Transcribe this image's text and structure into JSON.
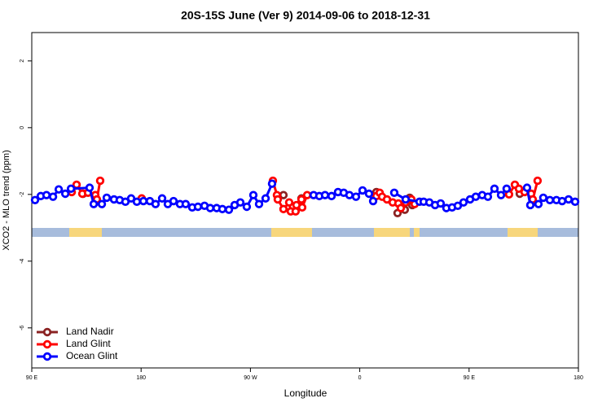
{
  "chart_data": {
    "type": "line",
    "title": "20S-15S June (Ver 9)   2014-09-06 to 2018-12-31",
    "x_label": "Longitude",
    "y_label": "XCO2 - MLO trend (ppm)",
    "xlim": [
      90,
      540
    ],
    "ylim": [
      -7.2,
      2.85
    ],
    "xticks": [
      {
        "value": 90,
        "label": "90 E"
      },
      180,
      {
        "value": 270,
        "label": "90 W"
      },
      {
        "value": 360,
        "label": "0"
      },
      {
        "value": 450,
        "label": "90 E"
      },
      {
        "value": 540,
        "label": "180"
      }
    ],
    "yticks": [
      2,
      0,
      -2,
      -4,
      -6
    ],
    "legend": "bottom-left",
    "series": [
      {
        "name": "Land Nadir",
        "color": "#8b2323",
        "x": [
          132.3,
          null,
          297.2,
          null,
          312.0,
          null,
          373.7,
          null,
          391.1,
          397.1,
          401.1,
          403.2,
          null,
          491.7
        ],
        "values": [
          -1.98,
          null,
          -2.02,
          null,
          -2.12,
          null,
          -1.93,
          null,
          -2.56,
          -2.46,
          -2.1,
          -2.32,
          null,
          -1.98
        ]
      },
      {
        "name": "Land Glint",
        "color": "#ff0000",
        "x": [
          122.9,
          126.9,
          131.6,
          136.3,
          142.3,
          143.6,
          146.3,
          null,
          180.5,
          null,
          288.5,
          291.8,
          292.5,
          297.2,
          301.9,
          303.2,
          307.2,
          307.9,
          312.0,
          312.6,
          316.7,
          null,
          373.7,
          376.4,
          378.4,
          382.4,
          387.1,
          391.8,
          393.8,
          397.8,
          402.5,
          405.2,
          null,
          482.9,
          487.7,
          491.0,
          495.7,
          501.1,
          502.4,
          506.4
        ],
        "values": [
          -1.93,
          -1.71,
          -1.98,
          -1.95,
          -2.02,
          -2.15,
          -1.59,
          null,
          -2.12,
          null,
          -1.59,
          -2.02,
          -2.15,
          -2.44,
          -2.24,
          -2.51,
          -2.51,
          -2.32,
          -2.15,
          -2.39,
          -2.02,
          null,
          -2.05,
          -1.95,
          -2.07,
          -2.15,
          -2.24,
          -2.27,
          -2.41,
          -2.24,
          -2.15,
          -2.29,
          null,
          -2.0,
          -1.71,
          -1.83,
          -1.93,
          -1.98,
          -2.15,
          -1.59
        ]
      },
      {
        "name": "Ocean Glint",
        "color": "#0000ff",
        "x": [
          92.7,
          97.4,
          102.1,
          107.5,
          112.2,
          117.6,
          122.3,
          137.6,
          141.0,
          147.7,
          151.7,
          157.7,
          162.4,
          167.1,
          171.8,
          176.5,
          181.9,
          187.2,
          191.9,
          197.3,
          202.0,
          206.7,
          212.0,
          216.7,
          222.1,
          226.8,
          232.2,
          236.9,
          242.2,
          246.9,
          252.3,
          257.0,
          261.7,
          267.0,
          272.4,
          277.1,
          282.5,
          287.8,
          null,
          322.0,
          326.7,
          331.4,
          336.8,
          342.1,
          346.8,
          351.5,
          356.9,
          362.3,
          367.6,
          371.0,
          null,
          388.4,
          397.8,
          409.2,
          412.6,
          417.3,
          422.0,
          426.6,
          431.3,
          436.0,
          440.7,
          445.4,
          450.8,
          455.5,
          460.8,
          465.5,
          470.9,
          476.3,
          480.9,
          null,
          497.7,
          500.4,
          507.1,
          511.1,
          516.5,
          521.9,
          526.6,
          531.9,
          537.3
        ],
        "values": [
          -2.17,
          -2.05,
          -2.02,
          -2.07,
          -1.85,
          -1.98,
          -1.83,
          -1.8,
          -2.29,
          -2.29,
          -2.1,
          -2.15,
          -2.17,
          -2.22,
          -2.12,
          -2.22,
          -2.2,
          -2.2,
          -2.29,
          -2.12,
          -2.29,
          -2.2,
          -2.29,
          -2.29,
          -2.39,
          -2.37,
          -2.34,
          -2.41,
          -2.41,
          -2.44,
          -2.46,
          -2.32,
          -2.24,
          -2.37,
          -2.02,
          -2.29,
          -2.12,
          -1.68,
          null,
          -2.02,
          -2.05,
          -2.02,
          -2.05,
          -1.93,
          -1.95,
          -2.02,
          -2.07,
          -1.88,
          -1.98,
          -2.2,
          null,
          -1.95,
          -2.15,
          -2.22,
          -2.22,
          -2.24,
          -2.32,
          -2.27,
          -2.41,
          -2.39,
          -2.34,
          -2.24,
          -2.15,
          -2.07,
          -2.02,
          -2.07,
          -1.83,
          -2.02,
          -1.83,
          null,
          -1.8,
          -2.32,
          -2.29,
          -2.1,
          -2.17,
          -2.17,
          -2.2,
          -2.15,
          -2.22
        ]
      }
    ]
  }
}
